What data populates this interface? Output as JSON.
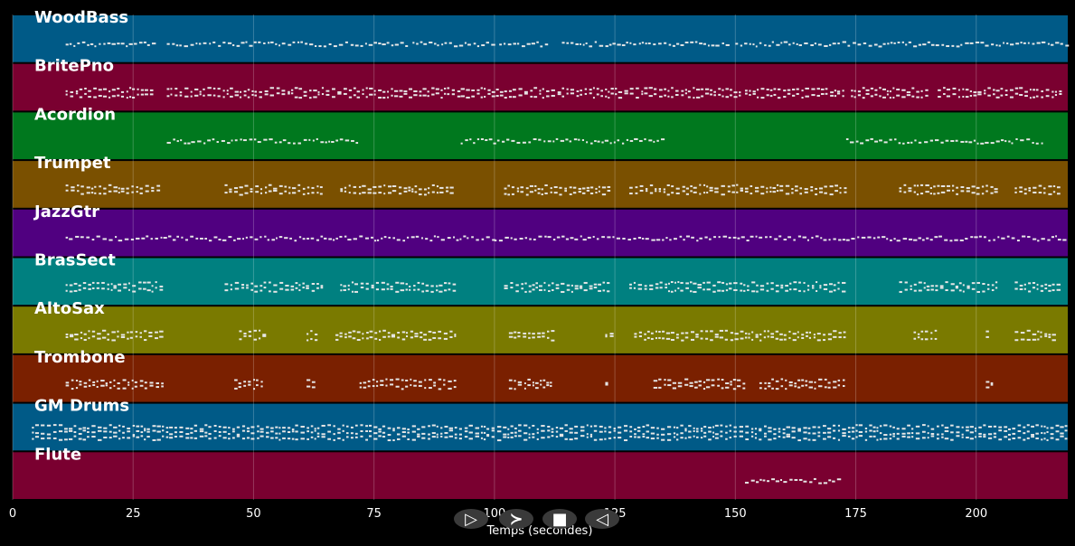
{
  "chart_data": {
    "type": "piano-roll",
    "xlabel": "Temps (secondes)",
    "xlim": [
      0,
      219
    ],
    "xticks": [
      0,
      25,
      50,
      75,
      100,
      125,
      150,
      175,
      200
    ],
    "grid": true,
    "tracks": [
      {
        "name": "WoodBass",
        "color": "#005a87",
        "segments": [
          [
            11,
            30
          ],
          [
            32,
            51
          ],
          [
            52,
            82
          ],
          [
            83,
            100
          ],
          [
            101,
            111
          ],
          [
            114,
            129
          ],
          [
            130,
            149
          ],
          [
            150,
            219
          ]
        ],
        "rows": 1
      },
      {
        "name": "BritePno",
        "color": "#7a0030",
        "segments": [
          [
            11,
            29
          ],
          [
            32,
            93
          ],
          [
            93,
            104
          ],
          [
            105,
            114
          ],
          [
            114,
            151
          ],
          [
            152,
            173
          ],
          [
            174,
            190
          ],
          [
            192,
            218
          ]
        ],
        "rows": 2
      },
      {
        "name": "Acordion",
        "color": "#00781e",
        "segments": [
          [
            32,
            72
          ],
          [
            93,
            135
          ],
          [
            173,
            214
          ]
        ],
        "rows": 1
      },
      {
        "name": "Trumpet",
        "color": "#7a5000",
        "segments": [
          [
            11,
            31
          ],
          [
            44,
            64
          ],
          [
            68,
            92
          ],
          [
            102,
            124
          ],
          [
            128,
            173
          ],
          [
            184,
            204
          ],
          [
            208,
            217
          ]
        ],
        "rows": 2
      },
      {
        "name": "JazzGtr",
        "color": "#500080",
        "segments": [
          [
            11,
            100
          ],
          [
            100,
            218
          ]
        ],
        "rows": 1
      },
      {
        "name": "BrasSect",
        "color": "#008080",
        "segments": [
          [
            11,
            31
          ],
          [
            44,
            64
          ],
          [
            68,
            92
          ],
          [
            102,
            124
          ],
          [
            128,
            173
          ],
          [
            184,
            204
          ],
          [
            208,
            217
          ]
        ],
        "rows": 2
      },
      {
        "name": "AltoSax",
        "color": "#7a7a00",
        "segments": [
          [
            11,
            31
          ],
          [
            47,
            52
          ],
          [
            61,
            63
          ],
          [
            67,
            92
          ],
          [
            103,
            112
          ],
          [
            123,
            124
          ],
          [
            129,
            152
          ],
          [
            152,
            173
          ],
          [
            187,
            192
          ],
          [
            202,
            203
          ],
          [
            208,
            216
          ]
        ],
        "rows": 2
      },
      {
        "name": "Trombone",
        "color": "#7a2000",
        "segments": [
          [
            11,
            31
          ],
          [
            46,
            52
          ],
          [
            61,
            63
          ],
          [
            72,
            92
          ],
          [
            103,
            112
          ],
          [
            123,
            124
          ],
          [
            133,
            152
          ],
          [
            155,
            173
          ],
          [
            202,
            203
          ]
        ],
        "rows": 2
      },
      {
        "name": "GM Drums",
        "color": "#005a87",
        "segments": [
          [
            4,
            219
          ]
        ],
        "rows": 3
      },
      {
        "name": "Flute",
        "color": "#7a0030",
        "segments": [
          [
            152,
            172
          ]
        ],
        "rows": 1
      }
    ]
  },
  "controls": {
    "buttons": [
      {
        "name": "play-button",
        "glyph": "▷"
      },
      {
        "name": "forward-button",
        "glyph": "≻"
      },
      {
        "name": "stop-button",
        "glyph": "■"
      },
      {
        "name": "back-button",
        "glyph": "◁"
      }
    ]
  }
}
